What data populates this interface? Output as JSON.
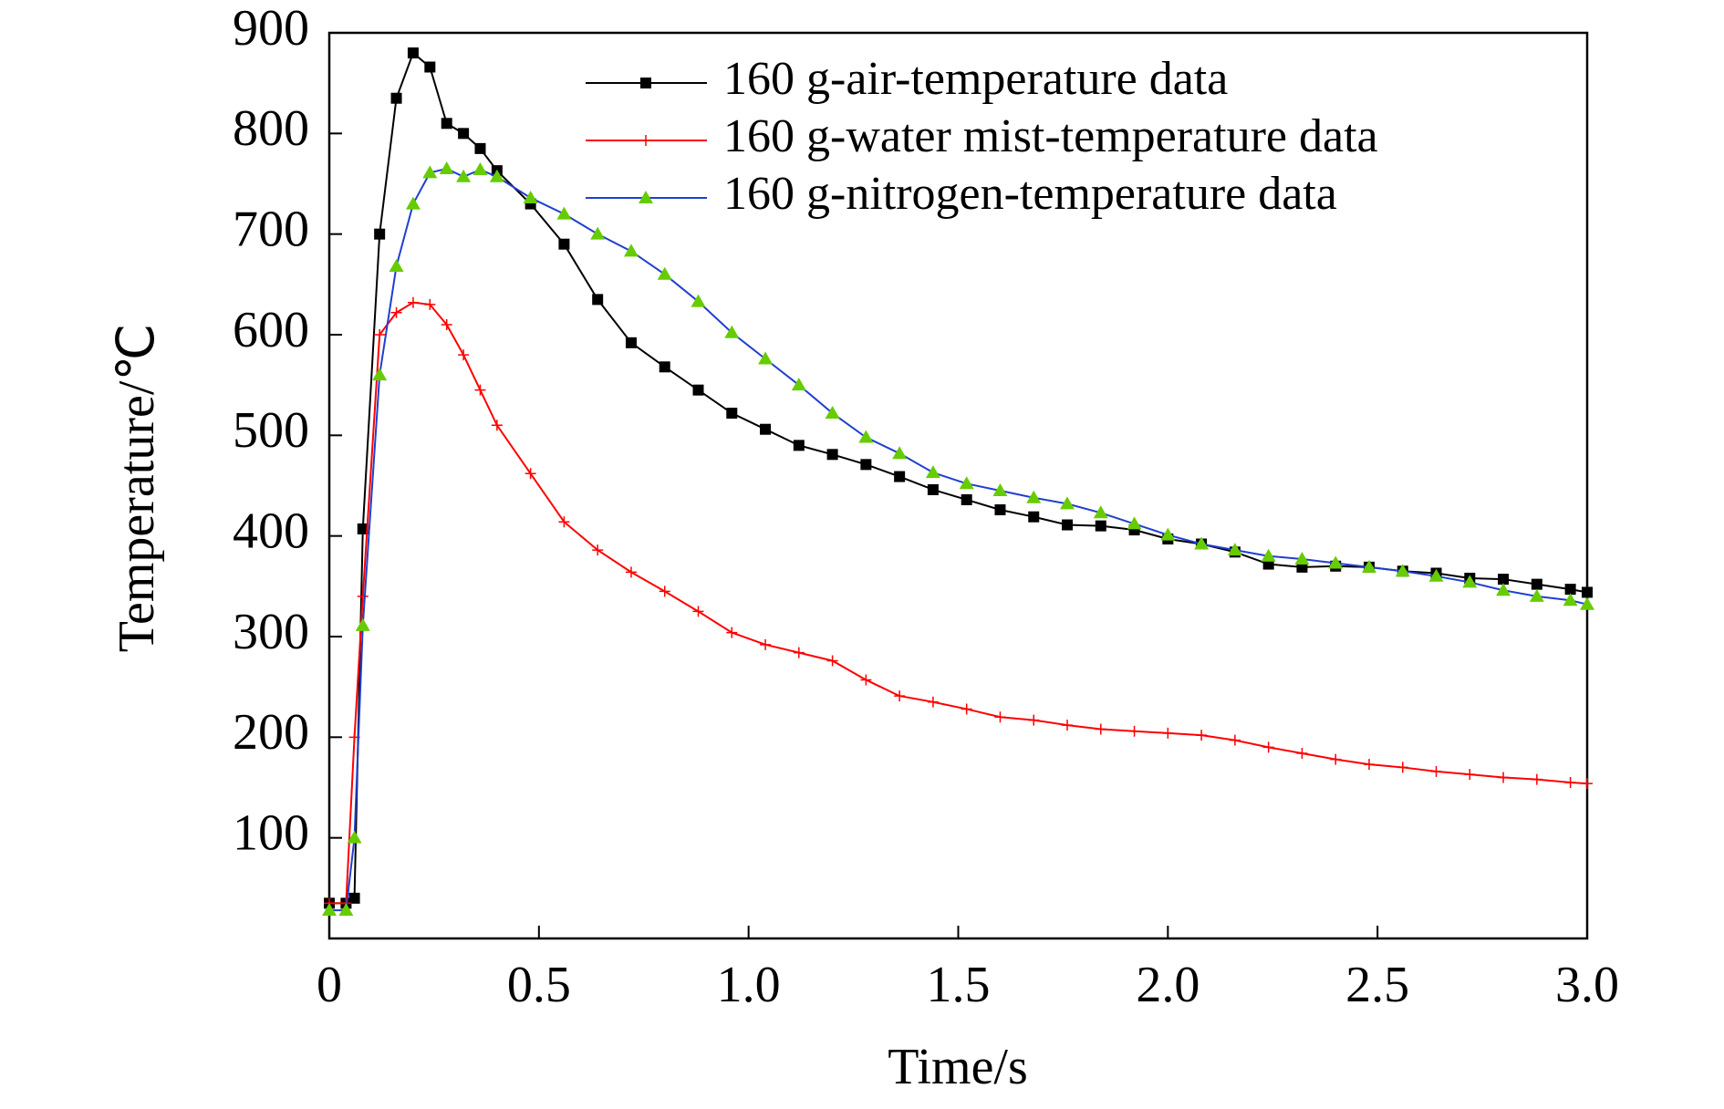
{
  "chart_data": {
    "type": "line",
    "x_label": "Time/s",
    "y_label": "Temperature/℃",
    "x": [
      0,
      0.04,
      0.06,
      0.08,
      0.12,
      0.16,
      0.2,
      0.24,
      0.28,
      0.32,
      0.36,
      0.4,
      0.48,
      0.56,
      0.64,
      0.72,
      0.8,
      0.88,
      0.96,
      1.04,
      1.12,
      1.2,
      1.28,
      1.36,
      1.44,
      1.52,
      1.6,
      1.68,
      1.76,
      1.84,
      1.92,
      2.0,
      2.08,
      2.16,
      2.24,
      2.32,
      2.4,
      2.48,
      2.56,
      2.64,
      2.72,
      2.8,
      2.88,
      2.96,
      3.0
    ],
    "series": [
      {
        "name": "160 g-air-temperature data",
        "color": "#000000",
        "marker": "square",
        "marker_color": "#000000",
        "values": [
          35,
          35,
          40,
          407,
          700,
          835,
          880,
          866,
          810,
          800,
          785,
          763,
          730,
          690,
          635,
          592,
          568,
          545,
          522,
          506,
          490,
          481,
          471,
          459,
          446,
          436,
          426,
          419,
          411,
          410,
          406,
          397,
          392,
          384,
          372,
          369,
          370,
          369,
          365,
          363,
          358,
          357,
          352,
          347,
          344
        ]
      },
      {
        "name": "160 g-water mist-temperature data",
        "color": "#ff0000",
        "marker": "cross",
        "marker_color": "#ff0000",
        "values": [
          35,
          35,
          200,
          340,
          600,
          622,
          632,
          630,
          610,
          580,
          545,
          510,
          462,
          414,
          386,
          364,
          345,
          325,
          304,
          292,
          284,
          276,
          257,
          241,
          235,
          228,
          220,
          217,
          212,
          208,
          206,
          204,
          202,
          197,
          190,
          184,
          178,
          173,
          170,
          166,
          163,
          160,
          158,
          155,
          154
        ]
      },
      {
        "name": "160 g-nitrogen-temperature data",
        "color": "#1f3fd0",
        "marker": "triangle",
        "marker_color": "#66cc00",
        "values": [
          28,
          28,
          100,
          311,
          560,
          668,
          730,
          761,
          765,
          757,
          764,
          757,
          736,
          720,
          700,
          683,
          660,
          633,
          602,
          576,
          550,
          522,
          498,
          482,
          463,
          452,
          445,
          438,
          432,
          423,
          412,
          401,
          392,
          386,
          380,
          377,
          373,
          369,
          365,
          360,
          354,
          346,
          340,
          336,
          332
        ]
      }
    ],
    "xlim": [
      0,
      3
    ],
    "xticks": [
      0,
      0.5,
      {
        "value": 1,
        "label": "1.0"
      },
      1.5,
      {
        "value": 2,
        "label": "2.0"
      },
      2.5,
      {
        "value": 3,
        "label": "3.0"
      }
    ],
    "ylim": [
      0,
      900
    ],
    "yticks": [
      100,
      200,
      300,
      400,
      500,
      600,
      700,
      800,
      900
    ],
    "legend": "top-right"
  }
}
